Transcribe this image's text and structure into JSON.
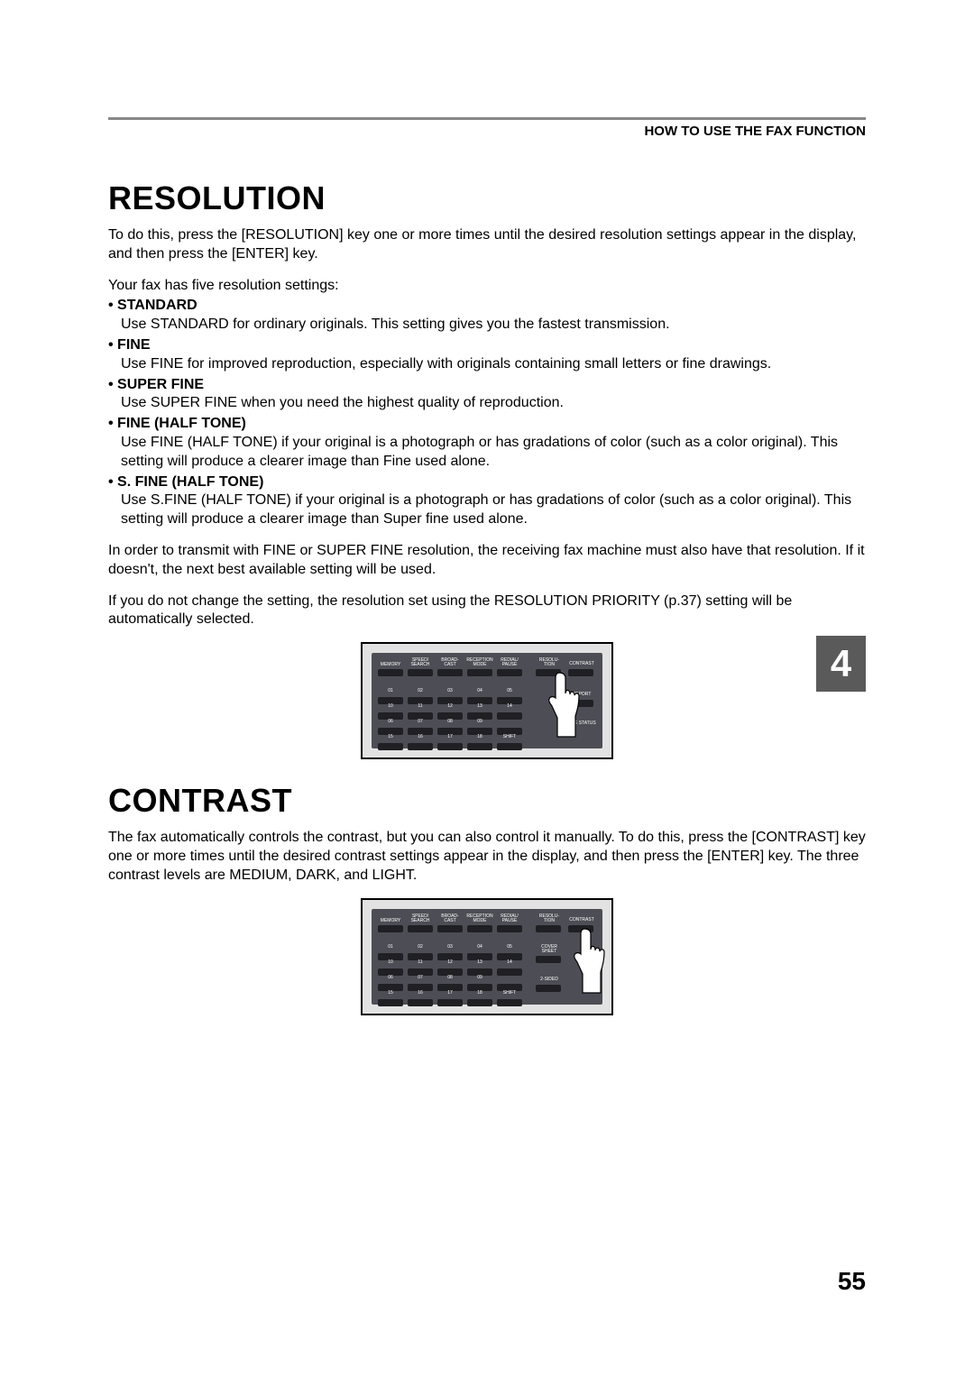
{
  "header": {
    "section_title": "HOW TO USE THE FAX FUNCTION"
  },
  "chapter_tab": "4",
  "page_number": "55",
  "resolution": {
    "heading": "RESOLUTION",
    "intro": "To do this, press the [RESOLUTION] key one or more times until the desired resolution settings appear in the display, and then press the [ENTER] key.",
    "intro2": "Your fax has five resolution settings:",
    "items": [
      {
        "name": "STANDARD",
        "desc": "Use STANDARD for ordinary originals. This setting gives you the fastest transmission."
      },
      {
        "name": "FINE",
        "desc": "Use FINE for improved reproduction, especially with originals containing small letters or fine drawings."
      },
      {
        "name": "SUPER FINE",
        "desc": "Use SUPER FINE when you need the highest quality of reproduction."
      },
      {
        "name": "FINE (HALF TONE)",
        "desc": "Use FINE (HALF TONE) if your original is a photograph or has gradations of color (such as a color original). This setting will produce a clearer image than Fine used alone."
      },
      {
        "name": "S. FINE (HALF TONE)",
        "desc": "Use S.FINE (HALF TONE) if your original is a photograph or has gradations of color (such as a color original). This setting will produce a clearer image than Super fine used alone."
      }
    ],
    "note1": "In order to transmit with FINE or SUPER FINE resolution, the receiving fax machine must also have that resolution. If it doesn't, the next best available setting will be used.",
    "note2": "If you do not change the setting, the resolution set using the RESOLUTION PRIORITY (p.37) setting will be automatically selected."
  },
  "contrast": {
    "heading": "CONTRAST",
    "body": "The fax automatically controls the contrast, but you can also control it manually. To do this, press the [CONTRAST] key one or more times until the desired contrast settings appear in the display, and then press the [ENTER] key. The three contrast levels are MEDIUM, DARK, and LIGHT."
  },
  "panel": {
    "top_labels": [
      "MEMORY",
      "SPEED/\nSEARCH",
      "BROAD-\nCAST",
      "RECEPTION\nMODE",
      "REDIAL/\nPAUSE"
    ],
    "right_top": [
      "RESOLU-\nTION",
      "CONTRAST"
    ],
    "mid_nums_top": [
      "01",
      "02",
      "03",
      "04",
      "05"
    ],
    "mid_nums_bot": [
      "10",
      "11",
      "12",
      "13",
      "14"
    ],
    "bot_nums_top": [
      "06",
      "07",
      "08",
      "09",
      ""
    ],
    "bot_nums_bot": [
      "15",
      "16",
      "17",
      "18",
      "SHIFT"
    ],
    "right_mid1": "COVER\nSHEET",
    "right_mid1b": "REPORT",
    "right_bot": "LINE\nSTATUS",
    "right_bot2": "2-SIDED"
  },
  "colors": {
    "panel_bg": "#4d4d55",
    "panel_border": "#000000",
    "panel_outer": "#e2e2e2",
    "btn": "#1f1f24",
    "tab_bg": "#5a5a5a",
    "hr": "#888888"
  }
}
